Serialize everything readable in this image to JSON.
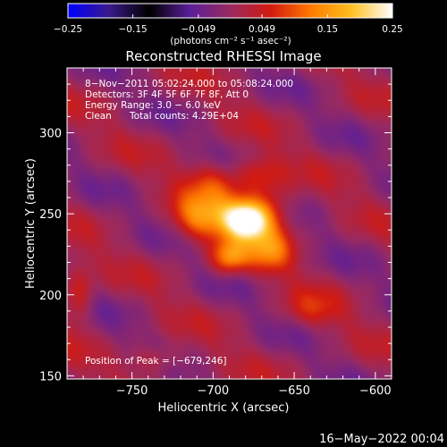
{
  "chart_data": {
    "type": "heatmap",
    "title": "Reconstructed RHESSI Image",
    "xlabel": "Heliocentric X (arcsec)",
    "ylabel": "Heliocentric Y (arcsec)",
    "xlim": [
      -790,
      -590
    ],
    "ylim": [
      148,
      340
    ],
    "x_ticks": [
      -750,
      -700,
      -650,
      -600
    ],
    "x_tick_labels": [
      "−750",
      "−700",
      "−650",
      "−600"
    ],
    "y_ticks": [
      150,
      200,
      250,
      300
    ],
    "y_tick_labels": [
      "150",
      "200",
      "250",
      "300"
    ],
    "colorbar": {
      "range": [
        -0.25,
        0.25
      ],
      "ticks": [
        -0.25,
        -0.15,
        -0.049,
        0.049,
        0.15,
        0.25
      ],
      "tick_labels": [
        "−0.25",
        "−0.15",
        "−0.049",
        "0.049",
        "0.15",
        "0.25"
      ],
      "units": "(photons cm⁻² s⁻¹ asec⁻²)",
      "colormap": [
        "#0000ff",
        "#3a1a8a",
        "#000000",
        "#5a1f9a",
        "#9a2a60",
        "#d21a10",
        "#ff7a00",
        "#ffc020",
        "#ffffff"
      ]
    },
    "annotations": {
      "time_range": "8−Nov−2011 05:02:24.000 to 05:08:24.000",
      "detectors": "Detectors: 3F 4F 5F 6F 7F 8F, Att 0",
      "energy": "Energy Range: 3.0 − 6.0 keV",
      "clean": "Clean",
      "total_counts": "Total counts: 4.29E+04",
      "peak": "Position of Peak = [−679,246]"
    },
    "peak": {
      "x": -679,
      "y": 246
    },
    "sources": [
      {
        "x": -679,
        "y": 246,
        "amp": 0.25,
        "sx": 9,
        "sy": 8
      },
      {
        "x": -693,
        "y": 248,
        "amp": 0.1,
        "sx": 12,
        "sy": 10
      },
      {
        "x": -665,
        "y": 250,
        "amp": 0.09,
        "sx": 10,
        "sy": 12
      },
      {
        "x": -690,
        "y": 223,
        "amp": 0.13,
        "sx": 8,
        "sy": 7
      },
      {
        "x": -712,
        "y": 247,
        "amp": 0.09,
        "sx": 10,
        "sy": 10
      },
      {
        "x": -665,
        "y": 227,
        "amp": 0.1,
        "sx": 10,
        "sy": 9
      },
      {
        "x": -700,
        "y": 270,
        "amp": 0.08,
        "sx": 12,
        "sy": 9
      },
      {
        "x": -672,
        "y": 275,
        "amp": 0.07,
        "sx": 10,
        "sy": 8
      },
      {
        "x": -783,
        "y": 200,
        "amp": 0.07,
        "sx": 6,
        "sy": 14
      },
      {
        "x": -640,
        "y": 190,
        "amp": 0.05,
        "sx": 12,
        "sy": 8
      },
      {
        "x": -735,
        "y": 160,
        "amp": 0.06,
        "sx": 12,
        "sy": 6
      }
    ]
  },
  "footer": {
    "date": "16−May−2022 00:04"
  }
}
